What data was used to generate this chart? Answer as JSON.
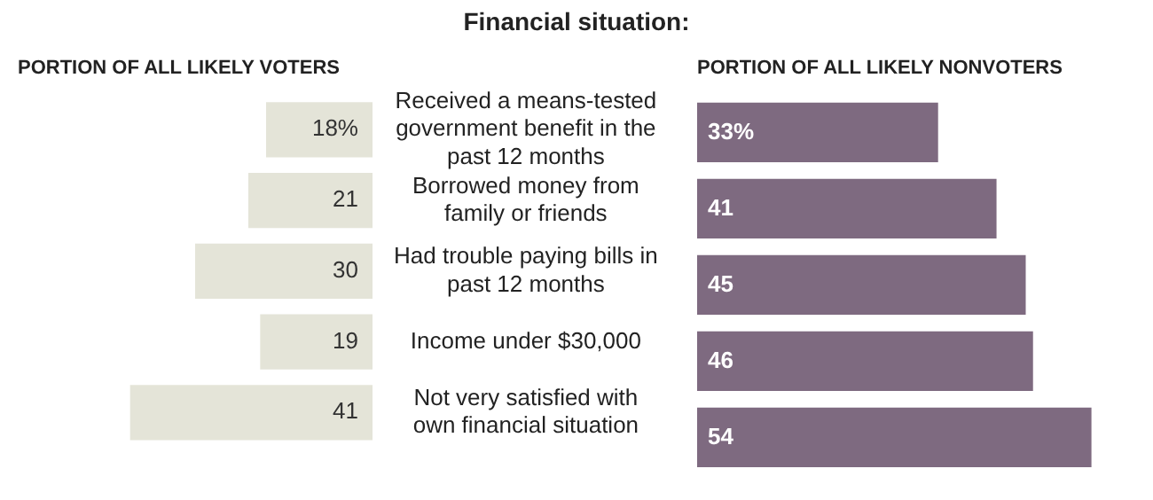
{
  "chart_data": [
    {
      "type": "bar",
      "orientation": "horizontal",
      "title": "PORTION OF ALL LIKELY VOTERS",
      "annotations": [
        "Financial situation:"
      ],
      "categories": [
        "Received a means-tested government benefit in the past 12 months",
        "Borrowed money from family or friends",
        "Had trouble paying bills in past 12 months",
        "Income under $30,000",
        "Not very satisfied with own financial situation"
      ],
      "values": [
        18,
        21,
        30,
        19,
        41
      ],
      "value_labels": [
        "18%",
        "21",
        "30",
        "19",
        "41"
      ],
      "color": "#e4e4d8"
    },
    {
      "type": "bar",
      "orientation": "horizontal",
      "title": "PORTION OF ALL LIKELY NONVOTERS",
      "categories": [
        null,
        null,
        null,
        null,
        null
      ],
      "values": [
        33,
        41,
        45,
        46,
        54
      ],
      "value_labels": [
        "33%",
        "41",
        "45",
        "46",
        "54"
      ],
      "color": "#7e6a80"
    }
  ]
}
